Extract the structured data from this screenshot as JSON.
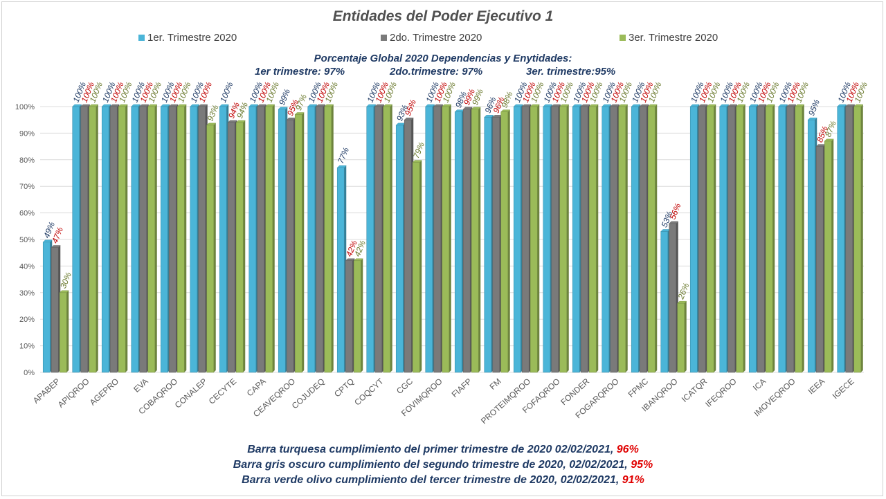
{
  "chart_data": {
    "type": "bar",
    "title": "Entidades del Poder Ejecutivo 1",
    "categories": [
      "APABEP",
      "APIQROO",
      "AGEPRO",
      "EVA",
      "COBAQROO",
      "CONALEP",
      "CECYTE",
      "CAPA",
      "CEAVEQROO",
      "COJUDEQ",
      "CPTQ",
      "COQCYT",
      "CGC",
      "FOVIMQROO",
      "FIAFP",
      "FM",
      "PROTEIMQROO",
      "FOFAQROO",
      "FONDER",
      "FOGARQROO",
      "FPMC",
      "IBANQROO",
      "ICATQR",
      "IFEQROO",
      "ICA",
      "IMOVEQROO",
      "IEEA",
      "IGECE"
    ],
    "series": [
      {
        "name": "1er. Trimestre 2020",
        "color": "#4bb5d8",
        "label_color": "#1f3a64",
        "values": [
          49,
          100,
          100,
          100,
          100,
          100,
          100,
          100,
          99,
          100,
          77,
          100,
          93,
          100,
          98,
          96,
          100,
          100,
          100,
          100,
          100,
          53,
          100,
          100,
          100,
          100,
          95,
          100
        ]
      },
      {
        "name": "2do. Trimestre 2020",
        "color": "#7a7a7a",
        "label_color": "#c00000",
        "values": [
          47,
          100,
          100,
          100,
          100,
          100,
          94,
          100,
          95,
          100,
          42,
          100,
          95,
          100,
          99,
          96,
          100,
          100,
          100,
          100,
          100,
          56,
          100,
          100,
          100,
          100,
          85,
          100
        ]
      },
      {
        "name": "3er. Trimestre 2020",
        "color": "#9bbb59",
        "label_color": "#6b7a2e",
        "values": [
          30,
          100,
          100,
          100,
          100,
          93,
          94,
          100,
          97,
          100,
          42,
          100,
          79,
          100,
          99,
          98,
          100,
          100,
          100,
          100,
          100,
          26,
          100,
          100,
          100,
          100,
          87,
          100
        ]
      }
    ],
    "y_ticks": [
      "0%",
      "10%",
      "20%",
      "30%",
      "40%",
      "50%",
      "60%",
      "70%",
      "80%",
      "90%",
      "100%"
    ],
    "ylim": [
      0,
      100
    ],
    "grid": true,
    "legend_position": "top"
  },
  "global": {
    "title": "Porcentaje Global 2020 Dependencias y Enytidades:",
    "q1": "1er trimestre: 97%",
    "q2": "2do.trimestre: 97%",
    "q3": "3er. trimestre:95%"
  },
  "footer": [
    {
      "text": "Barra turquesa  cumplimiento  del primer trimestre de 2020   02/02/2021,",
      "pct": "96%"
    },
    {
      "text": "Barra gris oscuro  cumplimiento  del segundo trimestre de 2020,  02/02/2021,",
      "pct": "95%"
    },
    {
      "text": "Barra verde olivo  cumplimiento  del tercer trimestre de 2020,  02/02/2021,",
      "pct": "91%"
    }
  ]
}
